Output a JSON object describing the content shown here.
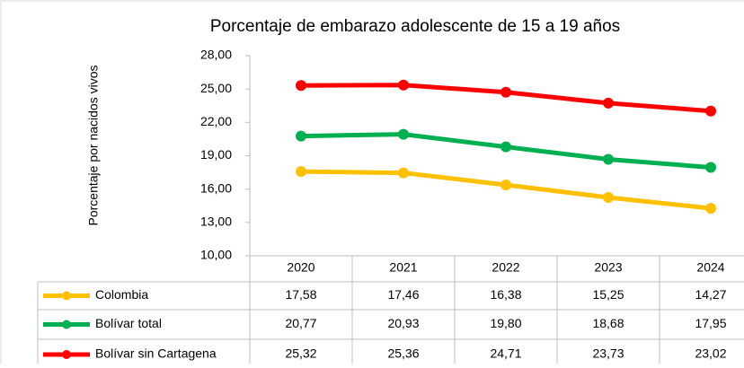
{
  "chart_data": {
    "type": "line",
    "title": "Porcentaje de embarazo adolescente de 15 a 19 años",
    "y_label": "Porcentaje por nacidos vivos",
    "categories": [
      "2020",
      "2021",
      "2022",
      "2023",
      "2024"
    ],
    "ylim": [
      10,
      28
    ],
    "yticks": [
      {
        "value": 10,
        "label": "10,00"
      },
      {
        "value": 13,
        "label": "13,00"
      },
      {
        "value": 16,
        "label": "16,00"
      },
      {
        "value": 19,
        "label": "19,00"
      },
      {
        "value": 22,
        "label": "22,00"
      },
      {
        "value": 25,
        "label": "25,00"
      },
      {
        "value": 28,
        "label": "28,00"
      }
    ],
    "series": [
      {
        "name": "Colombia",
        "color": "#FFC000",
        "values": [
          17.58,
          17.46,
          16.38,
          15.25,
          14.27
        ],
        "value_labels": [
          "17,58",
          "17,46",
          "16,38",
          "15,25",
          "14,27"
        ]
      },
      {
        "name": "Bolívar total",
        "color": "#00B050",
        "values": [
          20.77,
          20.93,
          19.8,
          18.68,
          17.95
        ],
        "value_labels": [
          "20,77",
          "20,93",
          "19,80",
          "18,68",
          "17,95"
        ]
      },
      {
        "name": "Bolívar sin Cartagena",
        "color": "#FF0000",
        "values": [
          25.32,
          25.36,
          24.71,
          23.73,
          23.02
        ],
        "value_labels": [
          "25,32",
          "25,36",
          "24,71",
          "23,73",
          "23,02"
        ]
      }
    ]
  }
}
